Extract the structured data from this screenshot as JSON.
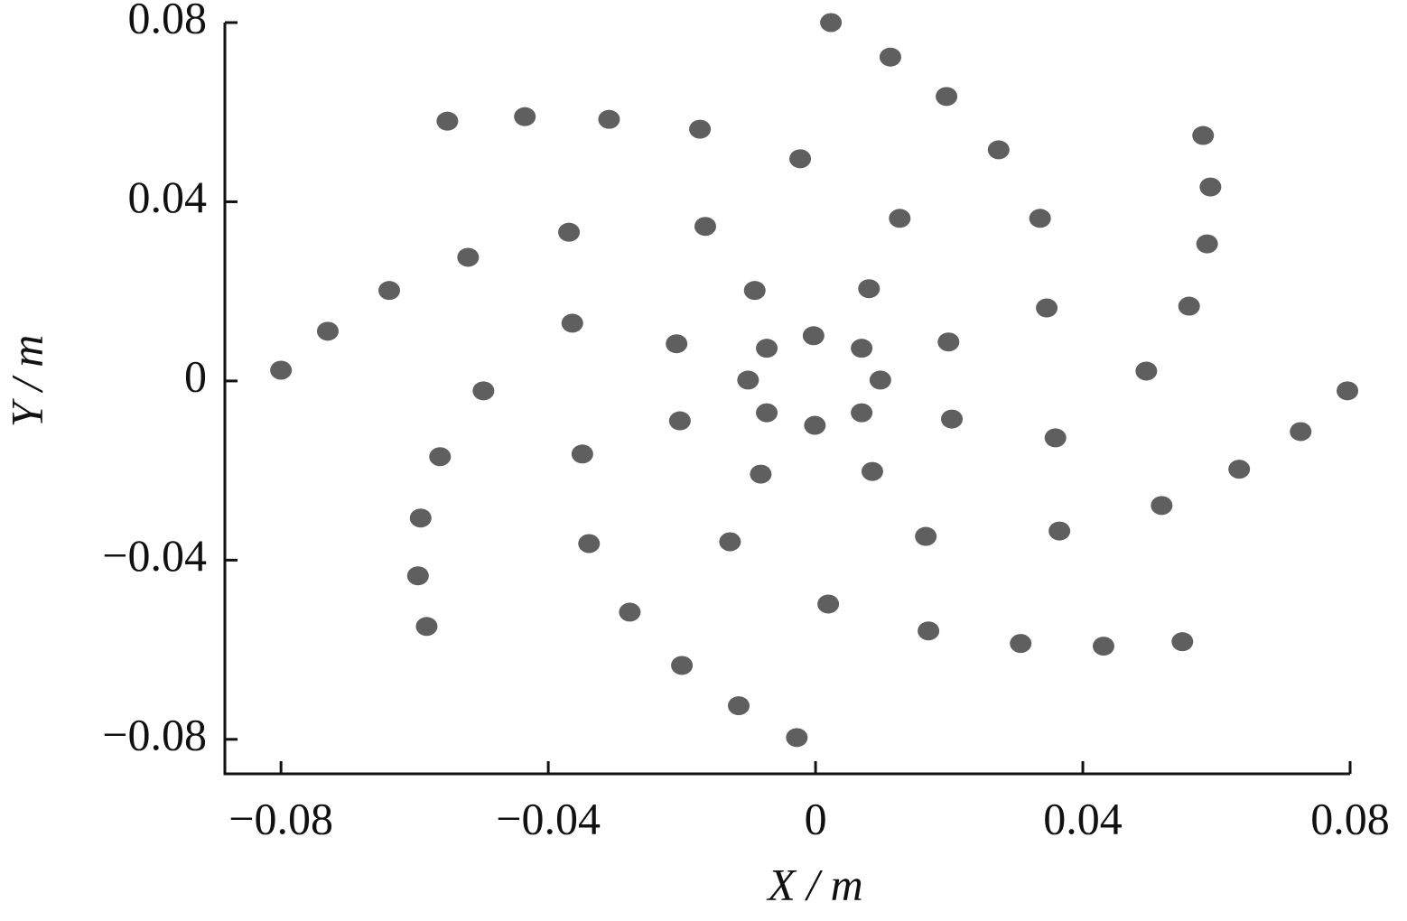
{
  "chart_data": {
    "type": "scatter",
    "x_label": "X / m",
    "y_label": "Y / m",
    "xlim": [
      -0.0884,
      0.08
    ],
    "ylim": [
      -0.0877,
      0.08
    ],
    "xticks": [
      {
        "value": -0.08,
        "label": "−0.08"
      },
      {
        "value": -0.04,
        "label": "−0.04"
      },
      0,
      0.04,
      0.08
    ],
    "yticks": [
      {
        "value": -0.08,
        "label": "−0.08"
      },
      {
        "value": -0.04,
        "label": "−0.04"
      },
      0,
      0.04,
      0.08
    ],
    "color": "#5f5f5f",
    "x": [
      0.0023,
      0.0112,
      0.0196,
      0.0274,
      0.0336,
      0.0346,
      0.0359,
      0.0365,
      0.0307,
      0.0169,
      0.0019,
      -0.0128,
      -0.0339,
      -0.0278,
      -0.02,
      -0.0115,
      -0.0028,
      0.0431,
      0.0549,
      0.0518,
      0.0634,
      0.0726,
      0.0796,
      0.0495,
      0.0559,
      0.0586,
      0.0591,
      0.058,
      0.0126,
      0.008,
      0.0199,
      0.0204,
      0.0085,
      0.0165,
      0.0069,
      0.0097,
      0.0069,
      -0.0001,
      -0.0073,
      -0.0101,
      -0.0073,
      -0.0003,
      -0.0091,
      -0.0208,
      -0.0203,
      -0.0082,
      -0.0023,
      -0.0165,
      -0.0173,
      -0.0309,
      -0.0435,
      -0.0551,
      -0.0369,
      -0.0364,
      -0.052,
      -0.0638,
      -0.073,
      -0.08,
      -0.0497,
      -0.0349,
      -0.0562,
      -0.0591,
      -0.0595,
      -0.0582
    ],
    "y": [
      0.08,
      0.0723,
      0.0635,
      0.0516,
      0.0363,
      0.0163,
      -0.0127,
      -0.0335,
      -0.0586,
      -0.0558,
      -0.0498,
      -0.0359,
      -0.0363,
      -0.0516,
      -0.0635,
      -0.0725,
      -0.0796,
      -0.0592,
      -0.0582,
      -0.0278,
      -0.0197,
      -0.0113,
      -0.0022,
      0.0022,
      0.0167,
      0.0306,
      0.0433,
      0.0548,
      0.0363,
      0.0206,
      0.0087,
      -0.0085,
      -0.0202,
      -0.0347,
      0.0073,
      0.0002,
      -0.0071,
      -0.0099,
      -0.0071,
      0.0002,
      0.0073,
      0.0101,
      0.0202,
      0.0083,
      -0.0089,
      -0.0208,
      0.0496,
      0.0345,
      0.0562,
      0.0584,
      0.059,
      0.058,
      0.0332,
      0.0129,
      0.0276,
      0.0202,
      0.0111,
      0.0024,
      -0.0022,
      -0.0163,
      -0.0169,
      -0.0306,
      -0.0435,
      -0.0548
    ]
  }
}
